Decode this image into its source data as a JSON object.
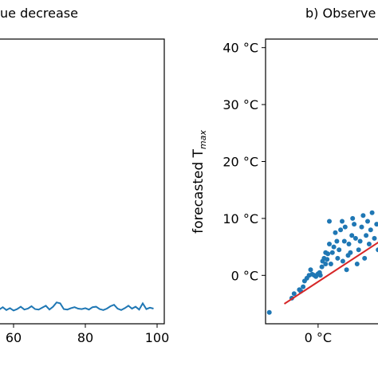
{
  "chart_data": [
    {
      "type": "line",
      "title": "ue decrease",
      "xlabel": "",
      "ylabel": "",
      "x_ticks": [
        "60",
        "80",
        "100"
      ],
      "x_tick_values": [
        60,
        80,
        100
      ],
      "xlim": [
        54,
        102
      ],
      "grid": false,
      "series": [
        {
          "color": "#1f77b4",
          "x": [
            54,
            55,
            56,
            57,
            58,
            59,
            60,
            61,
            62,
            63,
            64,
            65,
            66,
            67,
            68,
            69,
            70,
            71,
            72,
            73,
            74,
            75,
            76,
            77,
            78,
            79,
            80,
            81,
            82,
            83,
            84,
            85,
            86,
            87,
            88,
            89,
            90,
            91,
            92,
            93,
            94,
            95,
            96,
            97,
            98,
            99
          ],
          "y": [
            0.2,
            0.5,
            0.3,
            0.8,
            0.2,
            0.6,
            0.1,
            0.4,
            0.9,
            0.3,
            0.5,
            1.0,
            0.4,
            0.3,
            0.7,
            1.1,
            0.3,
            0.9,
            1.8,
            1.6,
            0.4,
            0.3,
            0.6,
            0.8,
            0.5,
            0.4,
            0.6,
            0.3,
            0.8,
            0.9,
            0.4,
            0.2,
            0.5,
            1.0,
            1.3,
            0.5,
            0.2,
            0.6,
            1.1,
            0.5,
            0.9,
            0.3,
            1.6,
            0.4,
            0.7,
            0.5
          ]
        }
      ]
    },
    {
      "type": "scatter",
      "title": "b) Observe",
      "xlabel": "",
      "ylabel": "forecasted T",
      "ylabel_subscript": "max",
      "y_ticks": [
        "40 °C",
        "30 °C",
        "20 °C",
        "10 °C",
        "0 °C"
      ],
      "y_tick_values": [
        40,
        30,
        20,
        10,
        0
      ],
      "x_ticks": [
        "0 °C"
      ],
      "x_tick_values": [
        0
      ],
      "ylim": [
        -8.5,
        41.5
      ],
      "xlim": [
        -7,
        10
      ],
      "grid": false,
      "points_color": "#1f77b4",
      "fit_line_color": "#d62728",
      "fit_line": {
        "x": [
          -4.5,
          10
        ],
        "y": [
          -5,
          7.5
        ]
      },
      "points": [
        [
          -6.5,
          -6.5
        ],
        [
          -3.5,
          -4.0
        ],
        [
          -3.2,
          -3.2
        ],
        [
          -2.5,
          -2.5
        ],
        [
          -2.3,
          -2.8
        ],
        [
          -2.0,
          -2.0
        ],
        [
          -1.8,
          -1.0
        ],
        [
          -1.5,
          -0.5
        ],
        [
          -1.2,
          0.0
        ],
        [
          -1.0,
          1.0
        ],
        [
          -0.8,
          0.2
        ],
        [
          -0.5,
          0.0
        ],
        [
          -0.3,
          -0.2
        ],
        [
          0.0,
          0.3
        ],
        [
          0.2,
          0.5
        ],
        [
          0.3,
          0.0
        ],
        [
          0.5,
          1.5
        ],
        [
          0.6,
          2.5
        ],
        [
          0.8,
          3.0
        ],
        [
          1.0,
          2.0
        ],
        [
          1.0,
          4.0
        ],
        [
          1.2,
          2.8
        ],
        [
          1.3,
          3.8
        ],
        [
          1.5,
          5.5
        ],
        [
          1.5,
          9.5
        ],
        [
          1.7,
          2.0
        ],
        [
          1.9,
          4.0
        ],
        [
          2.1,
          5.0
        ],
        [
          2.3,
          7.5
        ],
        [
          2.5,
          6.0
        ],
        [
          2.6,
          3.0
        ],
        [
          2.8,
          4.5
        ],
        [
          3.0,
          8.0
        ],
        [
          3.2,
          9.5
        ],
        [
          3.3,
          2.5
        ],
        [
          3.5,
          6.0
        ],
        [
          3.6,
          8.5
        ],
        [
          3.8,
          1.0
        ],
        [
          4.0,
          3.5
        ],
        [
          4.1,
          5.5
        ],
        [
          4.3,
          4.0
        ],
        [
          4.5,
          7.0
        ],
        [
          4.6,
          10.0
        ],
        [
          4.8,
          9.0
        ],
        [
          5.0,
          6.5
        ],
        [
          5.2,
          2.0
        ],
        [
          5.4,
          4.5
        ],
        [
          5.6,
          6.0
        ],
        [
          5.8,
          8.5
        ],
        [
          6.0,
          10.5
        ],
        [
          6.2,
          3.0
        ],
        [
          6.4,
          7.0
        ],
        [
          6.6,
          9.5
        ],
        [
          6.8,
          5.5
        ],
        [
          7.0,
          8.0
        ],
        [
          7.2,
          11.0
        ],
        [
          7.5,
          6.5
        ],
        [
          7.8,
          9.0
        ],
        [
          8.0,
          4.5
        ],
        [
          8.3,
          7.5
        ],
        [
          8.6,
          10.0
        ],
        [
          9.0,
          6.0
        ],
        [
          9.3,
          8.5
        ],
        [
          9.6,
          7.0
        ]
      ]
    }
  ]
}
